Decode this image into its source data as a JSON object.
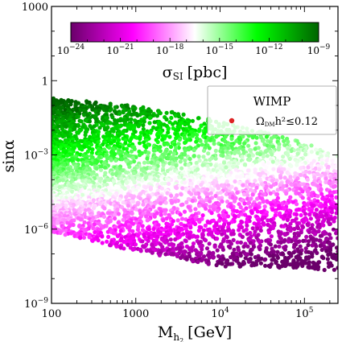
{
  "chart_data": {
    "type": "scatter",
    "x_axis": {
      "label": "M",
      "label_sub": "h",
      "label_sub2": "2",
      "label_unit": "[GeV]",
      "scale": "log",
      "range": [
        100,
        250000
      ],
      "ticks": [
        {
          "value": 100,
          "base": "100",
          "exp": ""
        },
        {
          "value": 1000,
          "base": "1000",
          "exp": ""
        },
        {
          "value": 10000,
          "base": "10",
          "exp": "4"
        },
        {
          "value": 100000,
          "base": "10",
          "exp": "5"
        }
      ]
    },
    "y_axis": {
      "label": "sinα",
      "scale": "log",
      "range": [
        1e-09,
        1000
      ],
      "ticks": [
        {
          "value": 1e-09,
          "base": "10",
          "exp": "−9"
        },
        {
          "value": 1e-06,
          "base": "10",
          "exp": "−6"
        },
        {
          "value": 0.001,
          "base": "10",
          "exp": "−3"
        },
        {
          "value": 1,
          "base": "1",
          "exp": ""
        },
        {
          "value": 1000,
          "base": "1000",
          "exp": ""
        }
      ]
    },
    "colorbar": {
      "label": "σ",
      "label_sub": "SI",
      "label_unit": "[pbc]",
      "scale": "log",
      "range": [
        1e-24,
        1e-09
      ],
      "colors": [
        "#6a006a",
        "#ff00ff",
        "#ffffff",
        "#00ff00",
        "#006400"
      ],
      "ticks": [
        {
          "value": 1e-24,
          "base": "10",
          "exp": "−24"
        },
        {
          "value": 1e-21,
          "base": "10",
          "exp": "−21"
        },
        {
          "value": 1e-18,
          "base": "10",
          "exp": "−18"
        },
        {
          "value": 1e-15,
          "base": "10",
          "exp": "−15"
        },
        {
          "value": 1e-12,
          "base": "10",
          "exp": "−12"
        },
        {
          "value": 1e-09,
          "base": "10",
          "exp": "−9"
        }
      ]
    },
    "legend": {
      "title": "WIMP",
      "position": "top-right",
      "entries": [
        {
          "marker_color": "#dd2222",
          "text_main": "Ω",
          "text_sub": "DM",
          "text_rest": "h²≤0.12"
        }
      ]
    },
    "series": [
      {
        "marker": "circle",
        "region": {
          "x_range_log10": [
            2.0,
            5.4
          ],
          "upper_edge_log10_sin": [
            {
              "x": 2.0,
              "y": -0.7
            },
            {
              "x": 3.0,
              "y": -1.0
            },
            {
              "x": 4.0,
              "y": -1.6
            },
            {
              "x": 5.0,
              "y": -2.5
            },
            {
              "x": 5.4,
              "y": -3.0
            }
          ],
          "lower_edge_log10_sin": [
            {
              "x": 2.0,
              "y": -6.1
            },
            {
              "x": 3.0,
              "y": -6.9
            },
            {
              "x": 4.0,
              "y": -7.5
            },
            {
              "x": 5.0,
              "y": -7.6
            },
            {
              "x": 5.4,
              "y": -7.7
            }
          ],
          "colour_relation": "log10 σ_SI ≈ -12.5 + 2·(log10 sinα + 2.8) - (log10 M - 2)"
        }
      }
    ]
  }
}
